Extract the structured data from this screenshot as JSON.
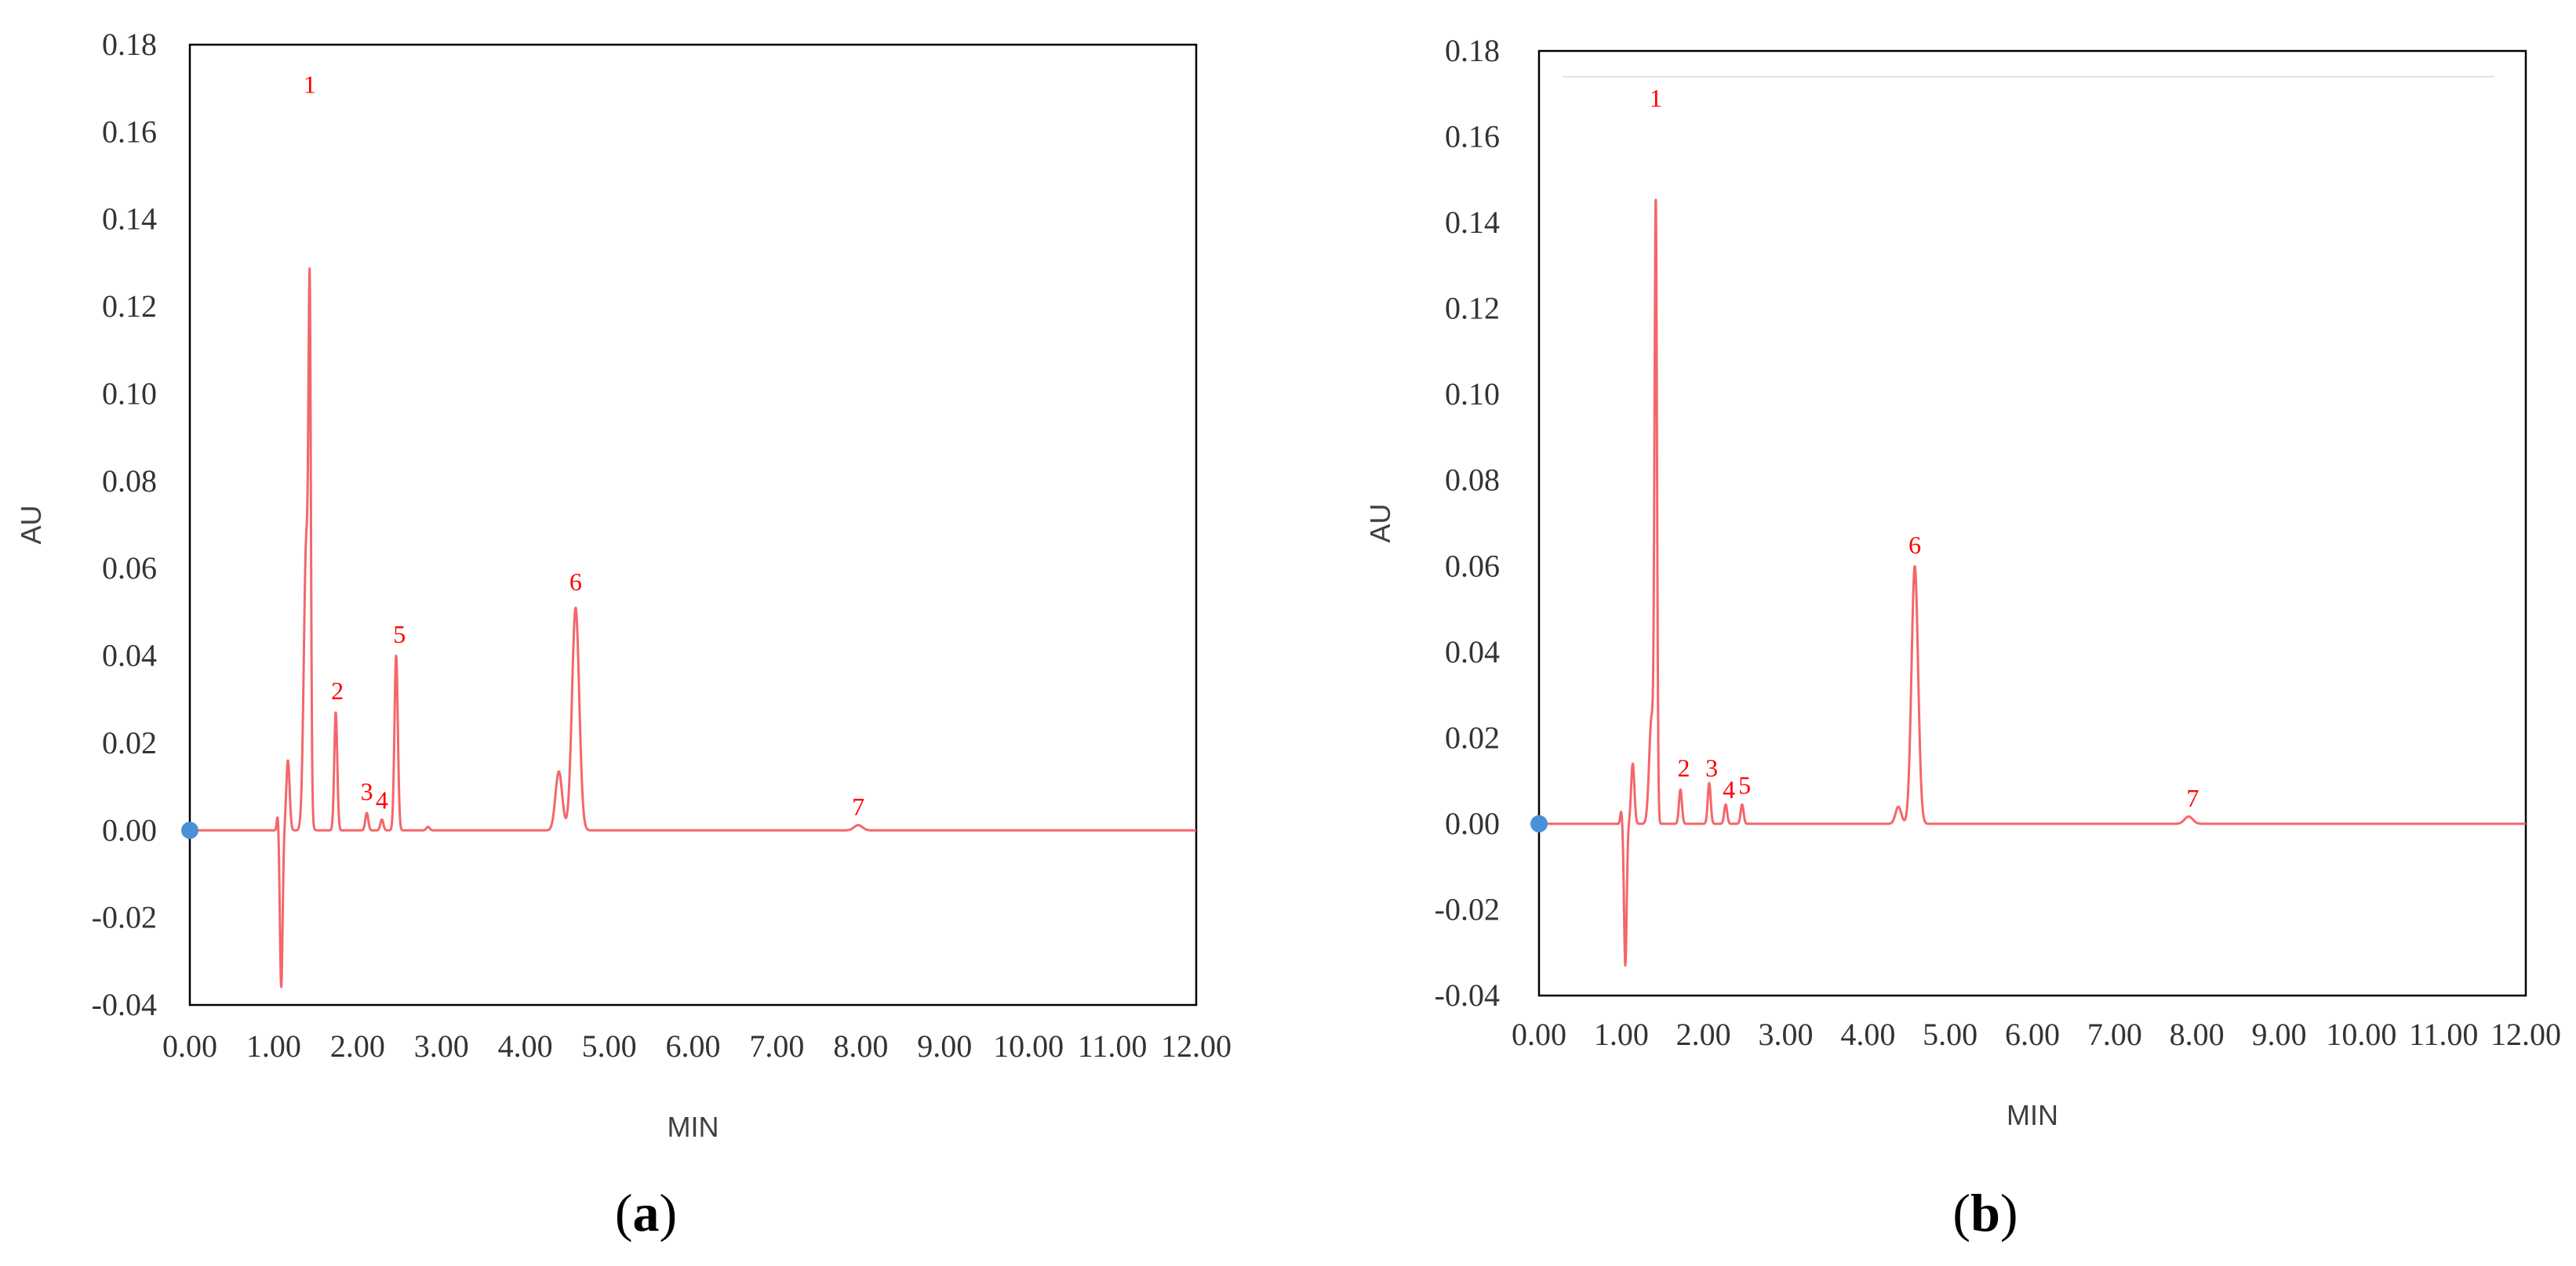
{
  "colors": {
    "trace": "#f4666a",
    "peak_label": "#ff0000",
    "origin_marker": "#4a90d9",
    "axis": "#000000"
  },
  "chart_data": [
    {
      "type": "line",
      "panel": "a",
      "panel_label": {
        "open": "(",
        "letter": "a",
        "close": ")"
      },
      "xlabel": "MIN",
      "ylabel": "AU",
      "xlim": [
        0,
        12
      ],
      "ylim": [
        -0.04,
        0.18
      ],
      "x_ticks": [
        "0.00",
        "1.00",
        "2.00",
        "3.00",
        "4.00",
        "5.00",
        "6.00",
        "7.00",
        "8.00",
        "9.00",
        "10.00",
        "11.00",
        "12.00"
      ],
      "y_ticks": [
        "-0.04",
        "-0.02",
        "0.00",
        "0.02",
        "0.04",
        "0.06",
        "0.08",
        "0.10",
        "0.12",
        "0.14",
        "0.16",
        "0.18"
      ],
      "grid": false,
      "baseline": 0.0,
      "peaks": [
        {
          "center": 1.05,
          "height": 0.004,
          "width": 0.012
        },
        {
          "center": 1.09,
          "height": -0.036,
          "width": 0.016
        },
        {
          "center": 1.17,
          "height": 0.016,
          "width": 0.02
        },
        {
          "center": 1.39,
          "height": 0.067,
          "width": 0.03
        },
        {
          "center": 1.43,
          "height": 0.1,
          "width": 0.014
        },
        {
          "center": 1.74,
          "height": 0.027,
          "width": 0.018
        },
        {
          "center": 2.11,
          "height": 0.004,
          "width": 0.018
        },
        {
          "center": 2.29,
          "height": 0.0025,
          "width": 0.018
        },
        {
          "center": 2.46,
          "height": 0.04,
          "width": 0.02
        },
        {
          "center": 2.84,
          "height": 0.0008,
          "width": 0.02
        },
        {
          "center": 4.4,
          "height": 0.0135,
          "width": 0.04
        },
        {
          "center": 4.6,
          "height": 0.051,
          "width": 0.043
        },
        {
          "center": 7.97,
          "height": 0.0012,
          "width": 0.05
        }
      ],
      "peak_labels": [
        {
          "label": "1",
          "x": 1.43,
          "y": 0.169
        },
        {
          "label": "2",
          "x": 1.76,
          "y": 0.03
        },
        {
          "label": "3",
          "x": 2.11,
          "y": 0.007
        },
        {
          "label": "4",
          "x": 2.29,
          "y": 0.005
        },
        {
          "label": "5",
          "x": 2.5,
          "y": 0.043
        },
        {
          "label": "6",
          "x": 4.6,
          "y": 0.055
        },
        {
          "label": "7",
          "x": 7.97,
          "y": 0.0035
        }
      ],
      "origin_marker": {
        "x": 0,
        "y": 0
      }
    },
    {
      "type": "line",
      "panel": "b",
      "panel_label": {
        "open": "(",
        "letter": "b",
        "close": ")"
      },
      "xlabel": "MIN",
      "ylabel": "AU",
      "xlim": [
        0,
        12
      ],
      "ylim": [
        -0.04,
        0.18
      ],
      "x_ticks": [
        "0.00",
        "1.00",
        "2.00",
        "3.00",
        "4.00",
        "5.00",
        "6.00",
        "7.00",
        "8.00",
        "9.00",
        "10.00",
        "11.00",
        "12.00"
      ],
      "y_ticks": [
        "-0.04",
        "-0.02",
        "0.00",
        "0.02",
        "0.04",
        "0.06",
        "0.08",
        "0.10",
        "0.12",
        "0.14",
        "0.16",
        "0.18"
      ],
      "grid": false,
      "baseline": 0.0,
      "top_reference_line": 0.174,
      "peaks": [
        {
          "center": 1.0,
          "height": 0.003,
          "width": 0.012
        },
        {
          "center": 1.05,
          "height": -0.033,
          "width": 0.016
        },
        {
          "center": 1.14,
          "height": 0.014,
          "width": 0.02
        },
        {
          "center": 1.37,
          "height": 0.025,
          "width": 0.03
        },
        {
          "center": 1.42,
          "height": 0.14,
          "width": 0.015
        },
        {
          "center": 1.72,
          "height": 0.008,
          "width": 0.018
        },
        {
          "center": 2.07,
          "height": 0.0095,
          "width": 0.018
        },
        {
          "center": 2.27,
          "height": 0.0045,
          "width": 0.018
        },
        {
          "center": 2.47,
          "height": 0.0045,
          "width": 0.018
        },
        {
          "center": 4.37,
          "height": 0.004,
          "width": 0.035
        },
        {
          "center": 4.57,
          "height": 0.06,
          "width": 0.04
        },
        {
          "center": 7.9,
          "height": 0.0017,
          "width": 0.05
        }
      ],
      "peak_labels": [
        {
          "label": "1",
          "x": 1.42,
          "y": 0.167
        },
        {
          "label": "2",
          "x": 1.76,
          "y": 0.011
        },
        {
          "label": "3",
          "x": 2.1,
          "y": 0.011
        },
        {
          "label": "4",
          "x": 2.31,
          "y": 0.006
        },
        {
          "label": "5",
          "x": 2.5,
          "y": 0.007
        },
        {
          "label": "6",
          "x": 4.57,
          "y": 0.063
        },
        {
          "label": "7",
          "x": 7.95,
          "y": 0.004
        }
      ],
      "origin_marker": {
        "x": 0,
        "y": 0
      }
    }
  ]
}
